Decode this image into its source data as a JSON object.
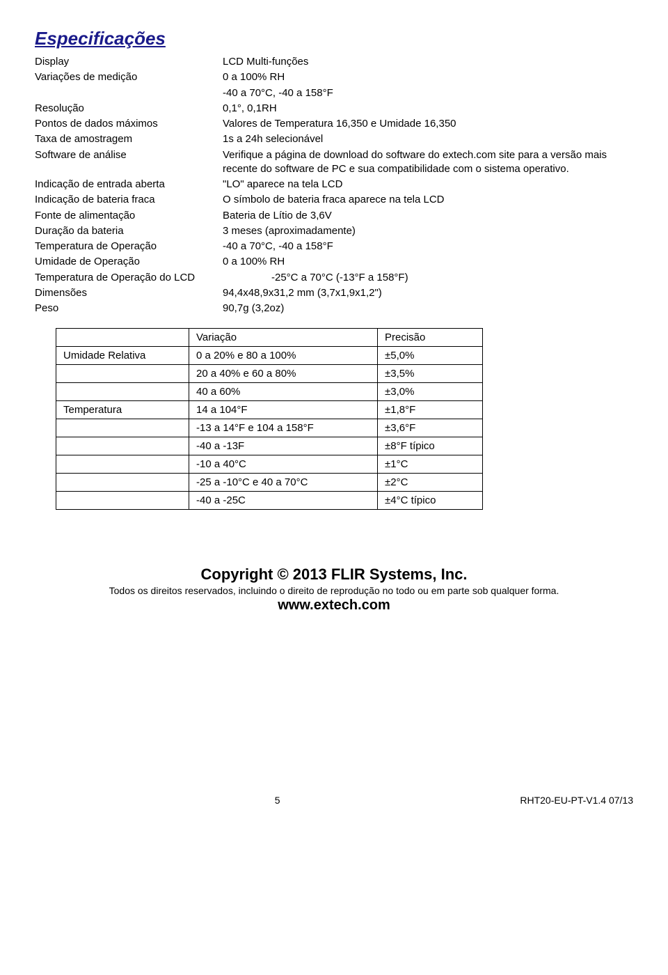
{
  "title": "Especificações",
  "specs": [
    {
      "label": "Display",
      "value": "LCD Multi-funções"
    },
    {
      "label": "Variações de medição",
      "value": "0 a 100% RH"
    },
    {
      "label": "",
      "value": "-40 a 70°C, -40 a 158°F"
    },
    {
      "label": "Resolução",
      "value": "0,1°, 0,1RH"
    },
    {
      "label": "Pontos de dados máximos",
      "value": "Valores de Temperatura 16,350 e Umidade 16,350"
    },
    {
      "label": "Taxa de amostragem",
      "value": "1s a 24h selecionável"
    },
    {
      "label": "Software de análise",
      "value": "Verifique a página de download do software do extech.com site para a versão mais recente do software de PC e sua compatibilidade com o sistema operativo."
    },
    {
      "label": "Indicação de entrada aberta",
      "value": "\"LO\" aparece na tela LCD"
    },
    {
      "label": "Indicação de bateria fraca",
      "value": "O símbolo de bateria fraca aparece na tela LCD"
    },
    {
      "label": "Fonte de alimentação",
      "value": "Bateria de Lítio de 3,6V"
    },
    {
      "label": "Duração da bateria",
      "value": "3 meses (aproximadamente)"
    },
    {
      "label": "Temperatura de Operação",
      "value": "-40 a 70°C, -40 a 158°F"
    },
    {
      "label": "Umidade de Operação",
      "value": "0 a 100% RH"
    }
  ],
  "spec_lcd": {
    "label": "Temperatura de Operação do LCD",
    "value": "-25°C a 70°C (-13°F a 158°F)"
  },
  "specs2": [
    {
      "label": "Dimensões",
      "value": "94,4x48,9x31,2 mm (3,7x1,9x1,2\")"
    },
    {
      "label": "Peso",
      "value": "90,7g (3,2oz)"
    }
  ],
  "table": {
    "header": [
      "",
      "Variação",
      "Precisão"
    ],
    "rows": [
      [
        "Umidade Relativa",
        "0 a 20% e 80 a 100%",
        "±5,0%"
      ],
      [
        "",
        "20 a 40% e 60 a 80%",
        "±3,5%"
      ],
      [
        "",
        "40 a 60%",
        "±3,0%"
      ],
      [
        "Temperatura",
        "14 a 104°F",
        "±1,8°F"
      ],
      [
        "",
        "-13 a 14°F e 104 a 158°F",
        "±3,6°F"
      ],
      [
        "",
        "-40 a -13F",
        "±8°F típico"
      ],
      [
        "",
        "-10 a 40°C",
        "±1°C"
      ],
      [
        "",
        "-25 a -10°C e 40 a 70°C",
        "±2°C"
      ],
      [
        "",
        "-40 a -25C",
        "±4°C típico"
      ]
    ],
    "col_widths": [
      "170px",
      "250px",
      "130px"
    ]
  },
  "copyright": "Copyright © 2013 FLIR Systems, Inc.",
  "rights": "Todos os direitos reservados, incluindo o direito de reprodução no todo ou em parte sob qualquer forma.",
  "website": "www.extech.com",
  "footer": {
    "page": "5",
    "code": "RHT20-EU-PT-V1.4  07/13"
  }
}
